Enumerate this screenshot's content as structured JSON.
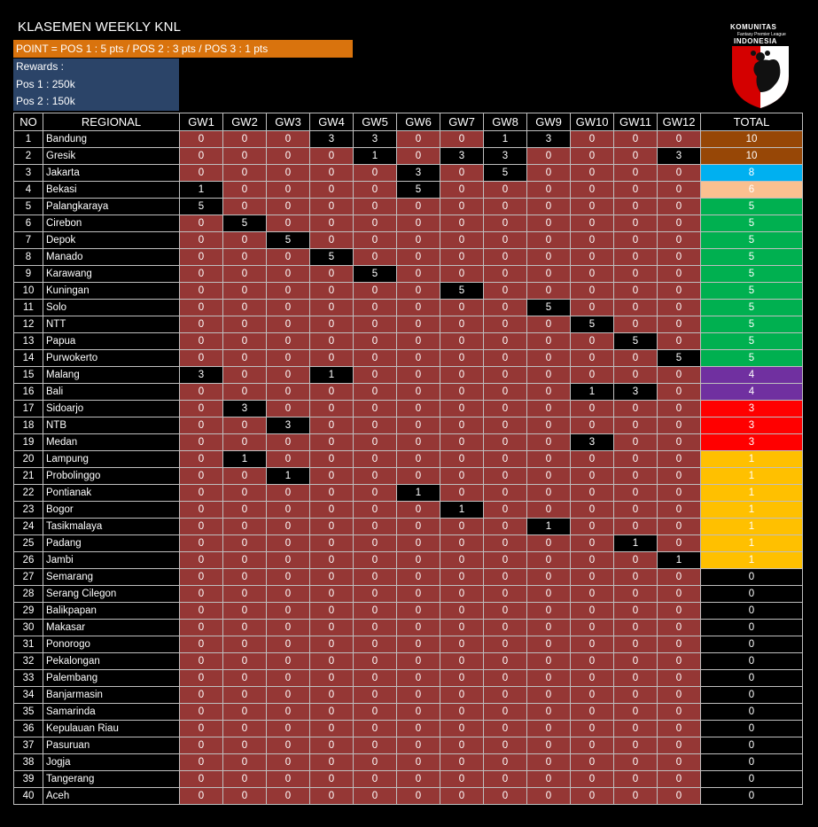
{
  "title": "KLASEMEN WEEKLY KNL",
  "point_rule": "POINT = POS 1 : 5 pts / POS 2 : 3 pts / POS 3 : 1 pts",
  "rewards": {
    "heading": "Rewards :",
    "pos1": "Pos 1 : 250k",
    "pos2": "Pos 2 : 150k"
  },
  "logo": {
    "line1": "KOMUNITAS",
    "line2": "Fantasy Premier League",
    "line3": "INDONESIA"
  },
  "headers": [
    "NO",
    "REGIONAL",
    "GW1",
    "GW2",
    "GW3",
    "GW4",
    "GW5",
    "GW6",
    "GW7",
    "GW8",
    "GW9",
    "GW10",
    "GW11",
    "GW12",
    "TOTAL"
  ],
  "total_colors": {
    "10": "#974706",
    "8": "#00b0f0",
    "6": "#fac090",
    "5": "#00b050",
    "4": "#7030a0",
    "3": "#ff0000",
    "1": "#ffc000",
    "0": "#000000"
  },
  "rows": [
    {
      "no": "1",
      "region": "Bandung",
      "gw": [
        0,
        0,
        0,
        3,
        3,
        0,
        0,
        1,
        3,
        0,
        0,
        0
      ],
      "total": 10
    },
    {
      "no": "2",
      "region": "Gresik",
      "gw": [
        0,
        0,
        0,
        0,
        1,
        0,
        3,
        3,
        0,
        0,
        0,
        3
      ],
      "total": 10
    },
    {
      "no": "3",
      "region": "Jakarta",
      "gw": [
        0,
        0,
        0,
        0,
        0,
        3,
        0,
        5,
        0,
        0,
        0,
        0
      ],
      "total": 8
    },
    {
      "no": "4",
      "region": "Bekasi",
      "gw": [
        1,
        0,
        0,
        0,
        0,
        5,
        0,
        0,
        0,
        0,
        0,
        0
      ],
      "total": 6
    },
    {
      "no": "5",
      "region": "Palangkaraya",
      "gw": [
        5,
        0,
        0,
        0,
        0,
        0,
        0,
        0,
        0,
        0,
        0,
        0
      ],
      "total": 5
    },
    {
      "no": "6",
      "region": "Cirebon",
      "gw": [
        0,
        5,
        0,
        0,
        0,
        0,
        0,
        0,
        0,
        0,
        0,
        0
      ],
      "total": 5
    },
    {
      "no": "7",
      "region": "Depok",
      "gw": [
        0,
        0,
        5,
        0,
        0,
        0,
        0,
        0,
        0,
        0,
        0,
        0
      ],
      "total": 5
    },
    {
      "no": "8",
      "region": "Manado",
      "gw": [
        0,
        0,
        0,
        5,
        0,
        0,
        0,
        0,
        0,
        0,
        0,
        0
      ],
      "total": 5
    },
    {
      "no": "9",
      "region": "Karawang",
      "gw": [
        0,
        0,
        0,
        0,
        5,
        0,
        0,
        0,
        0,
        0,
        0,
        0
      ],
      "total": 5
    },
    {
      "no": "10",
      "region": "Kuningan",
      "gw": [
        0,
        0,
        0,
        0,
        0,
        0,
        5,
        0,
        0,
        0,
        0,
        0
      ],
      "total": 5
    },
    {
      "no": "11",
      "region": "Solo",
      "gw": [
        0,
        0,
        0,
        0,
        0,
        0,
        0,
        0,
        5,
        0,
        0,
        0
      ],
      "total": 5
    },
    {
      "no": "12",
      "region": "NTT",
      "gw": [
        0,
        0,
        0,
        0,
        0,
        0,
        0,
        0,
        0,
        5,
        0,
        0
      ],
      "total": 5
    },
    {
      "no": "13",
      "region": "Papua",
      "gw": [
        0,
        0,
        0,
        0,
        0,
        0,
        0,
        0,
        0,
        0,
        5,
        0
      ],
      "total": 5
    },
    {
      "no": "14",
      "region": "Purwokerto",
      "gw": [
        0,
        0,
        0,
        0,
        0,
        0,
        0,
        0,
        0,
        0,
        0,
        5
      ],
      "total": 5
    },
    {
      "no": "15",
      "region": "Malang",
      "gw": [
        3,
        0,
        0,
        1,
        0,
        0,
        0,
        0,
        0,
        0,
        0,
        0
      ],
      "total": 4
    },
    {
      "no": "16",
      "region": "Bali",
      "gw": [
        0,
        0,
        0,
        0,
        0,
        0,
        0,
        0,
        0,
        1,
        3,
        0
      ],
      "total": 4
    },
    {
      "no": "17",
      "region": "Sidoarjo",
      "gw": [
        0,
        3,
        0,
        0,
        0,
        0,
        0,
        0,
        0,
        0,
        0,
        0
      ],
      "total": 3
    },
    {
      "no": "18",
      "region": "NTB",
      "gw": [
        0,
        0,
        3,
        0,
        0,
        0,
        0,
        0,
        0,
        0,
        0,
        0
      ],
      "total": 3
    },
    {
      "no": "19",
      "region": "Medan",
      "gw": [
        0,
        0,
        0,
        0,
        0,
        0,
        0,
        0,
        0,
        3,
        0,
        0
      ],
      "total": 3
    },
    {
      "no": "20",
      "region": "Lampung",
      "gw": [
        0,
        1,
        0,
        0,
        0,
        0,
        0,
        0,
        0,
        0,
        0,
        0
      ],
      "total": 1
    },
    {
      "no": "21",
      "region": "Probolinggo",
      "gw": [
        0,
        0,
        1,
        0,
        0,
        0,
        0,
        0,
        0,
        0,
        0,
        0
      ],
      "total": 1
    },
    {
      "no": "22",
      "region": "Pontianak",
      "gw": [
        0,
        0,
        0,
        0,
        0,
        1,
        0,
        0,
        0,
        0,
        0,
        0
      ],
      "total": 1
    },
    {
      "no": "23",
      "region": "Bogor",
      "gw": [
        0,
        0,
        0,
        0,
        0,
        0,
        1,
        0,
        0,
        0,
        0,
        0
      ],
      "total": 1
    },
    {
      "no": "24",
      "region": "Tasikmalaya",
      "gw": [
        0,
        0,
        0,
        0,
        0,
        0,
        0,
        0,
        1,
        0,
        0,
        0
      ],
      "total": 1
    },
    {
      "no": "25",
      "region": "Padang",
      "gw": [
        0,
        0,
        0,
        0,
        0,
        0,
        0,
        0,
        0,
        0,
        1,
        0
      ],
      "total": 1
    },
    {
      "no": "26",
      "region": "Jambi",
      "gw": [
        0,
        0,
        0,
        0,
        0,
        0,
        0,
        0,
        0,
        0,
        0,
        1
      ],
      "total": 1
    },
    {
      "no": "27",
      "region": "Semarang",
      "gw": [
        0,
        0,
        0,
        0,
        0,
        0,
        0,
        0,
        0,
        0,
        0,
        0
      ],
      "total": 0
    },
    {
      "no": "28",
      "region": "Serang Cilegon",
      "gw": [
        0,
        0,
        0,
        0,
        0,
        0,
        0,
        0,
        0,
        0,
        0,
        0
      ],
      "total": 0
    },
    {
      "no": "29",
      "region": "Balikpapan",
      "gw": [
        0,
        0,
        0,
        0,
        0,
        0,
        0,
        0,
        0,
        0,
        0,
        0
      ],
      "total": 0
    },
    {
      "no": "30",
      "region": "Makasar",
      "gw": [
        0,
        0,
        0,
        0,
        0,
        0,
        0,
        0,
        0,
        0,
        0,
        0
      ],
      "total": 0
    },
    {
      "no": "31",
      "region": "Ponorogo",
      "gw": [
        0,
        0,
        0,
        0,
        0,
        0,
        0,
        0,
        0,
        0,
        0,
        0
      ],
      "total": 0
    },
    {
      "no": "32",
      "region": "Pekalongan",
      "gw": [
        0,
        0,
        0,
        0,
        0,
        0,
        0,
        0,
        0,
        0,
        0,
        0
      ],
      "total": 0
    },
    {
      "no": "33",
      "region": "Palembang",
      "gw": [
        0,
        0,
        0,
        0,
        0,
        0,
        0,
        0,
        0,
        0,
        0,
        0
      ],
      "total": 0
    },
    {
      "no": "34",
      "region": "Banjarmasin",
      "gw": [
        0,
        0,
        0,
        0,
        0,
        0,
        0,
        0,
        0,
        0,
        0,
        0
      ],
      "total": 0
    },
    {
      "no": "35",
      "region": "Samarinda",
      "gw": [
        0,
        0,
        0,
        0,
        0,
        0,
        0,
        0,
        0,
        0,
        0,
        0
      ],
      "total": 0
    },
    {
      "no": "36",
      "region": "Kepulauan Riau",
      "gw": [
        0,
        0,
        0,
        0,
        0,
        0,
        0,
        0,
        0,
        0,
        0,
        0
      ],
      "total": 0
    },
    {
      "no": "37",
      "region": "Pasuruan",
      "gw": [
        0,
        0,
        0,
        0,
        0,
        0,
        0,
        0,
        0,
        0,
        0,
        0
      ],
      "total": 0
    },
    {
      "no": "38",
      "region": "Jogja",
      "gw": [
        0,
        0,
        0,
        0,
        0,
        0,
        0,
        0,
        0,
        0,
        0,
        0
      ],
      "total": 0
    },
    {
      "no": "39",
      "region": "Tangerang",
      "gw": [
        0,
        0,
        0,
        0,
        0,
        0,
        0,
        0,
        0,
        0,
        0,
        0
      ],
      "total": 0
    },
    {
      "no": "40",
      "region": "Aceh",
      "gw": [
        0,
        0,
        0,
        0,
        0,
        0,
        0,
        0,
        0,
        0,
        0,
        0
      ],
      "total": 0
    }
  ]
}
